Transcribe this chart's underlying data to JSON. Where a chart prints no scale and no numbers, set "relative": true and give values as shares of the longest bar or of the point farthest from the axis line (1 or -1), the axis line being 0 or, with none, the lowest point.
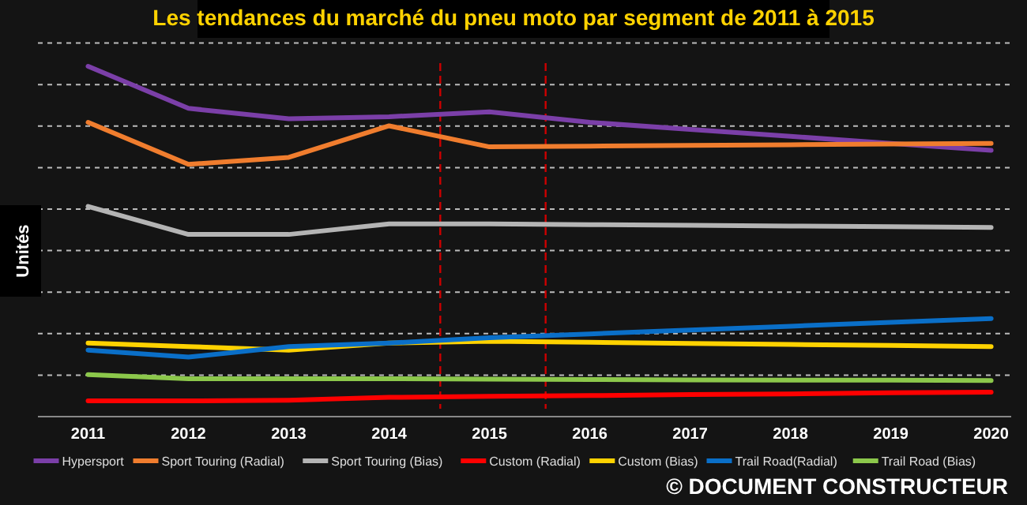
{
  "chart_data": {
    "type": "line",
    "title": "Les tendances du marché du pneu moto par segment de 2011 à 2015",
    "ylabel": "Unités",
    "relative": true,
    "x": [
      2011,
      2012,
      2013,
      2014,
      2015,
      2016,
      2017,
      2018,
      2019,
      2020
    ],
    "xlim": [
      2010.5,
      2020.2
    ],
    "xticks": [
      2011,
      2012,
      2013,
      2014,
      2015,
      2016,
      2017,
      2018,
      2019,
      2020
    ],
    "series": [
      {
        "name": "Hypersport",
        "color": "#7b3fa8",
        "values": [
          1.0,
          0.88,
          0.85,
          0.856,
          0.87,
          0.84,
          0.82,
          0.8,
          0.78,
          0.76
        ]
      },
      {
        "name": "Sport Touring (Radial)",
        "color": "#f07d2e",
        "values": [
          0.84,
          0.72,
          0.74,
          0.83,
          0.77,
          0.772,
          0.774,
          0.776,
          0.778,
          0.78
        ]
      },
      {
        "name": "Sport Touring (Bias)",
        "color": "#b4b4b4",
        "values": [
          0.6,
          0.52,
          0.52,
          0.55,
          0.55,
          0.548,
          0.546,
          0.544,
          0.542,
          0.54
        ]
      },
      {
        "name": "Custom (Radial)",
        "color": "#ff0000",
        "values": [
          0.045,
          0.045,
          0.047,
          0.055,
          0.058,
          0.06,
          0.063,
          0.065,
          0.068,
          0.07
        ]
      },
      {
        "name": "Custom (Bias)",
        "color": "#ffd200",
        "values": [
          0.21,
          0.2,
          0.19,
          0.21,
          0.215,
          0.212,
          0.209,
          0.206,
          0.203,
          0.2
        ]
      },
      {
        "name": "Trail Road(Radial)",
        "color": "#0a6fc8",
        "values": [
          0.19,
          0.17,
          0.2,
          0.21,
          0.225,
          0.236,
          0.247,
          0.258,
          0.269,
          0.28
        ]
      },
      {
        "name": "Trail Road (Bias)",
        "color": "#8cc84b",
        "values": [
          0.12,
          0.108,
          0.108,
          0.108,
          0.107,
          0.106,
          0.105,
          0.104,
          0.104,
          0.103
        ]
      }
    ],
    "ref_lines": [
      {
        "axis": "x",
        "value": 2014.51,
        "color": "#cc0000",
        "line_style": "dashed"
      },
      {
        "axis": "x",
        "value": 2015.56,
        "color": "#cc0000",
        "line_style": "dashed"
      }
    ],
    "grid": "y",
    "legend": "bottom",
    "marker": "none",
    "line_style": "solid",
    "annotations": [
      "© DOCUMENT CONSTRUCTEUR"
    ]
  }
}
